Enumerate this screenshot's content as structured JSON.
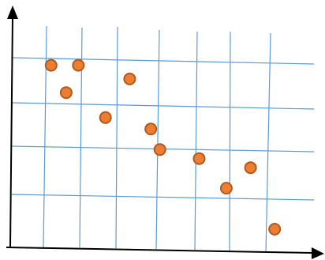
{
  "chart_data": {
    "type": "scatter",
    "title": "",
    "xlabel": "",
    "ylabel": "",
    "axis_ticks_shown": false,
    "grid": true,
    "legend": "none",
    "xlim": [
      0,
      10
    ],
    "ylim": [
      0,
      10
    ],
    "points": [
      {
        "x": 1.3,
        "y": 8.0
      },
      {
        "x": 2.2,
        "y": 8.0
      },
      {
        "x": 1.8,
        "y": 6.8
      },
      {
        "x": 3.9,
        "y": 7.4
      },
      {
        "x": 3.1,
        "y": 5.7
      },
      {
        "x": 4.6,
        "y": 5.2
      },
      {
        "x": 4.9,
        "y": 4.3
      },
      {
        "x": 6.2,
        "y": 3.9
      },
      {
        "x": 7.1,
        "y": 2.6
      },
      {
        "x": 7.9,
        "y": 3.5
      },
      {
        "x": 8.7,
        "y": 0.8
      }
    ],
    "colors": {
      "marker_fill": "#ed7d31",
      "marker_stroke": "#ae5a21",
      "grid": "#5b9bd5",
      "axis": "#000000"
    }
  }
}
